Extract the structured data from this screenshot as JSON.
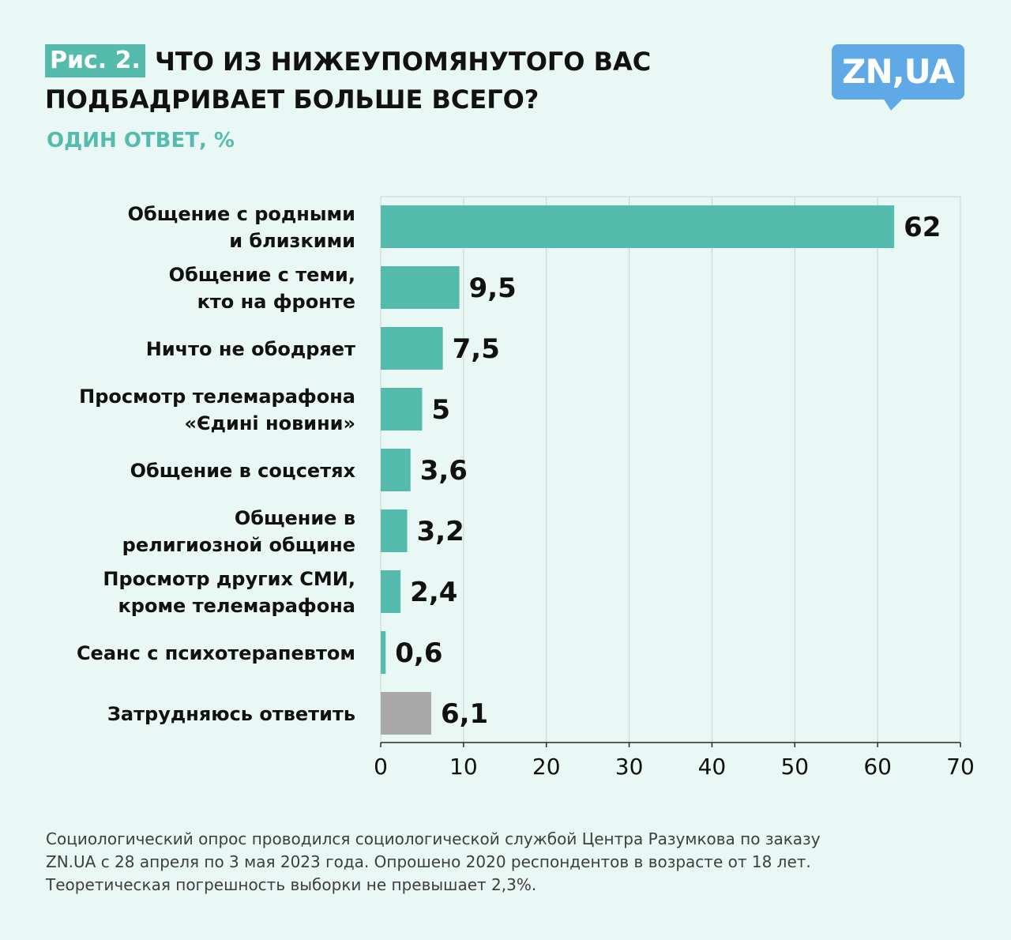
{
  "header": {
    "figure_label": "Рис. 2.",
    "title_line1": "ЧТО ИЗ НИЖЕУПОМЯНУТОГО ВАС",
    "title_line2": "ПОДБАДРИВАЕТ БОЛЬШЕ ВСЕГО?",
    "subtitle": "ОДИН ОТВЕТ, %",
    "logo_text": "ZN,UA"
  },
  "colors": {
    "accent": "#55bcad",
    "gray_bar": "#a9a9a9",
    "background": "#e9f7f5",
    "grid": "#c8d4d2",
    "logo": "#5fa9e6"
  },
  "chart_data": {
    "type": "bar",
    "orientation": "horizontal",
    "categories": [
      [
        "Общение с родными",
        "и близкими"
      ],
      [
        "Общение с теми,",
        "кто на фронте"
      ],
      [
        "Ничто не ободряет"
      ],
      [
        "Просмотр телемарафона",
        "«Єдині новини»"
      ],
      [
        "Общение в соцсетях"
      ],
      [
        "Общение в",
        "религиозной общине"
      ],
      [
        "Просмотр других СМИ,",
        "кроме телемарафона"
      ],
      [
        "Сеанс с психотерапевтом"
      ],
      [
        "Затрудняюсь ответить"
      ]
    ],
    "values": [
      62,
      9.5,
      7.5,
      5,
      3.6,
      3.2,
      2.4,
      0.6,
      6.1
    ],
    "value_labels": [
      "62",
      "9,5",
      "7,5",
      "5",
      "3,6",
      "3,2",
      "2,4",
      "0,6",
      "6,1"
    ],
    "bar_colors": [
      "#55bcad",
      "#55bcad",
      "#55bcad",
      "#55bcad",
      "#55bcad",
      "#55bcad",
      "#55bcad",
      "#55bcad",
      "#a9a9a9"
    ],
    "xlim": [
      0,
      70
    ],
    "xticks": [
      0,
      10,
      20,
      30,
      40,
      50,
      60,
      70
    ],
    "grid": true,
    "title": "ЧТО ИЗ НИЖЕУПОМЯНУТОГО ВАС ПОДБАДРИВАЕТ БОЛЬШЕ ВСЕГО?",
    "xlabel": "",
    "ylabel": ""
  },
  "footnote": [
    "Социологический опрос проводился социологической службой Центра Разумкова по заказу",
    "ZN.UA с 28 апреля по 3 мая 2023 года. Опрошено 2020 респондентов в возрасте от 18 лет.",
    "Теоретическая погрешность выборки не превышает 2,3%."
  ]
}
